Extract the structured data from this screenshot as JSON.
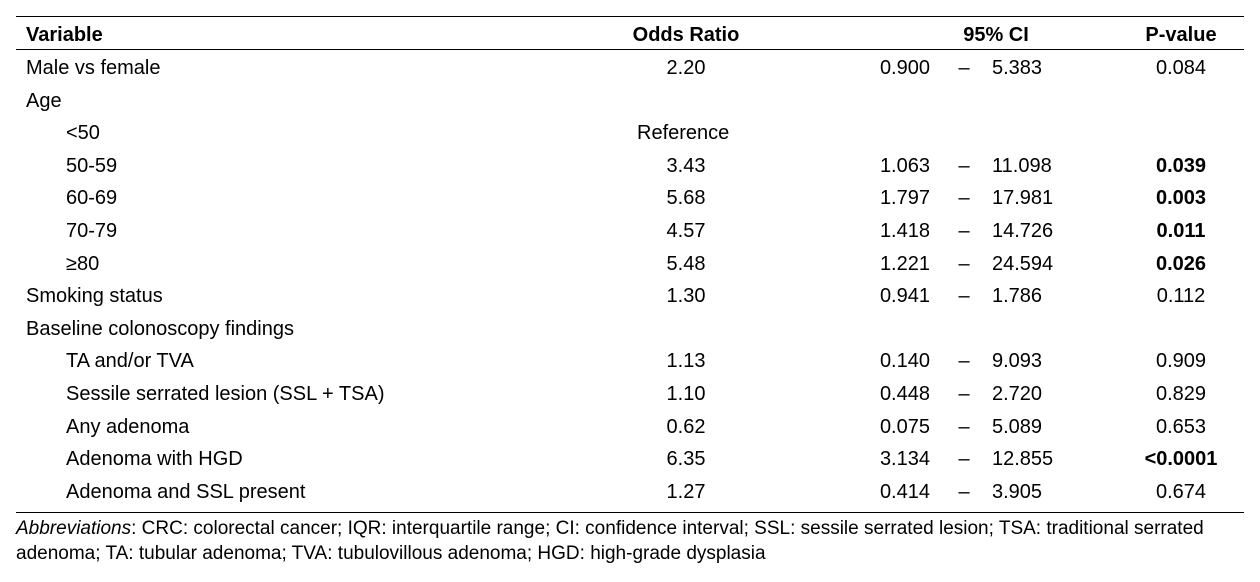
{
  "table": {
    "headers": {
      "variable": "Variable",
      "odds_ratio": "Odds Ratio",
      "ci": "95% CI",
      "p_value": "P-value"
    },
    "dash": "–",
    "rows": [
      {
        "label": "Male vs female",
        "indent": false,
        "or": "2.20",
        "lo": "0.900",
        "hi": "5.383",
        "p": "0.084",
        "sig": false
      },
      {
        "label": "Age",
        "indent": false,
        "or": "",
        "lo": "",
        "hi": "",
        "p": "",
        "sig": false
      },
      {
        "label": "<50",
        "indent": true,
        "ref": "Reference",
        "or": "",
        "lo": "",
        "hi": "",
        "p": "",
        "sig": false
      },
      {
        "label": "50-59",
        "indent": true,
        "or": "3.43",
        "lo": "1.063",
        "hi": "11.098",
        "p": "0.039",
        "sig": true
      },
      {
        "label": "60-69",
        "indent": true,
        "or": "5.68",
        "lo": "1.797",
        "hi": "17.981",
        "p": "0.003",
        "sig": true
      },
      {
        "label": "70-79",
        "indent": true,
        "or": "4.57",
        "lo": "1.418",
        "hi": "14.726",
        "p": "0.011",
        "sig": true
      },
      {
        "label": "≥80",
        "indent": true,
        "or": "5.48",
        "lo": "1.221",
        "hi": "24.594",
        "p": "0.026",
        "sig": true
      },
      {
        "label": "Smoking status",
        "indent": false,
        "or": "1.30",
        "lo": "0.941",
        "hi": "1.786",
        "p": "0.112",
        "sig": false
      },
      {
        "label": "Baseline colonoscopy findings",
        "indent": false,
        "or": "",
        "lo": "",
        "hi": "",
        "p": "",
        "sig": false
      },
      {
        "label": "TA and/or TVA",
        "indent": true,
        "or": "1.13",
        "lo": "0.140",
        "hi": "9.093",
        "p": "0.909",
        "sig": false
      },
      {
        "label": "Sessile serrated lesion (SSL + TSA)",
        "indent": true,
        "or": "1.10",
        "lo": "0.448",
        "hi": "2.720",
        "p": "0.829",
        "sig": false
      },
      {
        "label": "Any adenoma",
        "indent": true,
        "or": "0.62",
        "lo": "0.075",
        "hi": "5.089",
        "p": "0.653",
        "sig": false
      },
      {
        "label": "Adenoma with HGD",
        "indent": true,
        "or": "6.35",
        "lo": "3.134",
        "hi": "12.855",
        "p": "<0.0001",
        "sig": true
      },
      {
        "label": "Adenoma and SSL present",
        "indent": true,
        "or": "1.27",
        "lo": "0.414",
        "hi": "3.905",
        "p": "0.674",
        "sig": false
      }
    ]
  },
  "footnote": {
    "term": "Abbreviations",
    "text": ": CRC: colorectal cancer; IQR: interquartile range; CI: confidence interval; SSL: sessile serrated lesion; TSA: traditional serrated adenoma; TA: tubular adenoma; TVA: tubulovillous adenoma; HGD: high-grade dysplasia"
  }
}
